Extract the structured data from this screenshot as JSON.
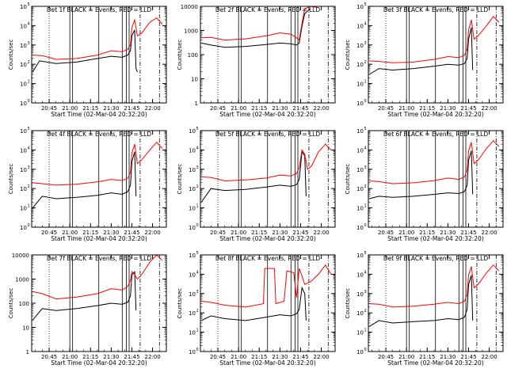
{
  "figure": {
    "start_time_label": "Start Time (02-Mar-04 20:32:20)",
    "ylabel": "Counts/sec",
    "x_ticks": [
      "20:45",
      "21:00",
      "21:15",
      "21:30",
      "21:45",
      "22:00"
    ],
    "colors": {
      "events": "#000000",
      "lld": "#ff0000"
    }
  },
  "chart_data": [
    {
      "type": "line",
      "title": "Det 1f BLACK = Events, RED = LLD",
      "ylabel": "Counts/sec",
      "xlabel": "Start Time (02-Mar-04 20:32:20)",
      "ylim": [
        1,
        100000
      ],
      "yscale": "log",
      "ytick_format": "exp",
      "xlim": [
        "20:32:20",
        "22:10:00"
      ],
      "x_ticks": [
        "20:45",
        "21:00",
        "21:15",
        "21:30",
        "21:45",
        "22:00"
      ],
      "series": [
        {
          "name": "BLACK = Events",
          "color": "#000000",
          "x": [
            "20:33",
            "20:38",
            "20:50",
            "21:05",
            "21:20",
            "21:30",
            "21:38",
            "21:42",
            "21:44",
            "21:45",
            "21:47",
            "21:48",
            "21:49"
          ],
          "values": [
            40,
            150,
            110,
            130,
            200,
            260,
            230,
            300,
            500,
            3000,
            6000,
            60,
            40
          ]
        },
        {
          "name": "RED = LLD",
          "color": "#ff0000",
          "x": [
            "20:33",
            "20:40",
            "20:50",
            "21:05",
            "21:20",
            "21:30",
            "21:38",
            "21:42",
            "21:44",
            "21:45",
            "21:47",
            "21:49",
            "21:52",
            "21:58",
            "22:03",
            "22:07"
          ],
          "values": [
            300,
            280,
            180,
            200,
            300,
            500,
            450,
            600,
            1000,
            8000,
            20000,
            3000,
            4000,
            15000,
            25000,
            12000
          ]
        }
      ]
    },
    {
      "type": "line",
      "title": "Det 2f BLACK = Events, RED = LLD",
      "ylabel": "Counts/sec",
      "xlabel": "Start Time (02-Mar-04 20:32:20)",
      "ylim": [
        1,
        10000
      ],
      "yscale": "log",
      "ytick_format": "plain",
      "xlim": [
        "20:32:20",
        "22:10:00"
      ],
      "x_ticks": [
        "20:45",
        "21:00",
        "21:15",
        "21:30",
        "21:45",
        "22:00"
      ],
      "series": [
        {
          "name": "BLACK = Events",
          "color": "#000000",
          "x": [
            "20:33",
            "20:40",
            "20:50",
            "21:05",
            "21:20",
            "21:30",
            "21:38",
            "21:42",
            "21:44",
            "21:46",
            "21:48",
            "21:52"
          ],
          "values": [
            300,
            250,
            200,
            220,
            260,
            300,
            280,
            250,
            300,
            1500,
            5000,
            8000
          ]
        },
        {
          "name": "RED = LLD",
          "color": "#ff0000",
          "x": [
            "20:33",
            "20:40",
            "20:50",
            "21:05",
            "21:20",
            "21:30",
            "21:38",
            "21:42",
            "21:44",
            "21:46",
            "21:48",
            "21:52",
            "21:57"
          ],
          "values": [
            500,
            520,
            400,
            450,
            600,
            800,
            700,
            500,
            400,
            2000,
            8000,
            10000,
            9000
          ]
        }
      ]
    },
    {
      "type": "line",
      "title": "Det 3f BLACK = Events, RED = LLD",
      "ylabel": "Counts/sec",
      "xlabel": "Start Time (02-Mar-04 20:32:20)",
      "ylim": [
        1,
        100000
      ],
      "yscale": "log",
      "ytick_format": "exp",
      "xlim": [
        "20:32:20",
        "22:10:00"
      ],
      "x_ticks": [
        "20:45",
        "21:00",
        "21:15",
        "21:30",
        "21:45",
        "22:00"
      ],
      "series": [
        {
          "name": "BLACK = Events",
          "color": "#000000",
          "x": [
            "20:33",
            "20:40",
            "20:50",
            "21:05",
            "21:20",
            "21:30",
            "21:38",
            "21:42",
            "21:44",
            "21:45",
            "21:47",
            "21:48"
          ],
          "values": [
            30,
            60,
            50,
            60,
            80,
            100,
            90,
            110,
            200,
            2000,
            8000,
            50
          ]
        },
        {
          "name": "RED = LLD",
          "color": "#ff0000",
          "x": [
            "20:33",
            "20:40",
            "20:50",
            "21:05",
            "21:20",
            "21:30",
            "21:38",
            "21:42",
            "21:44",
            "21:45",
            "21:47",
            "21:49",
            "21:52",
            "21:58",
            "22:03",
            "22:07"
          ],
          "values": [
            150,
            140,
            120,
            130,
            180,
            250,
            220,
            300,
            600,
            6000,
            20000,
            2000,
            3000,
            10000,
            30000,
            15000
          ]
        }
      ]
    },
    {
      "type": "line",
      "title": "Det 4f BLACK = Events, RED = LLD",
      "ylabel": "Counts/sec",
      "xlabel": "Start Time (02-Mar-04 20:32:20)",
      "ylim": [
        1,
        100000
      ],
      "yscale": "log",
      "ytick_format": "exp",
      "xlim": [
        "20:32:20",
        "22:10:00"
      ],
      "x_ticks": [
        "20:45",
        "21:00",
        "21:15",
        "21:30",
        "21:45",
        "22:00"
      ],
      "series": [
        {
          "name": "BLACK = Events",
          "color": "#000000",
          "x": [
            "20:33",
            "20:40",
            "20:50",
            "21:05",
            "21:20",
            "21:30",
            "21:38",
            "21:42",
            "21:44",
            "21:45",
            "21:47",
            "21:48"
          ],
          "values": [
            10,
            40,
            30,
            35,
            45,
            60,
            50,
            70,
            150,
            2500,
            8000,
            40
          ]
        },
        {
          "name": "RED = LLD",
          "color": "#ff0000",
          "x": [
            "20:33",
            "20:40",
            "20:50",
            "21:05",
            "21:20",
            "21:30",
            "21:38",
            "21:42",
            "21:44",
            "21:45",
            "21:47",
            "21:49",
            "21:52",
            "21:58",
            "22:03",
            "22:07"
          ],
          "values": [
            200,
            180,
            150,
            170,
            220,
            300,
            260,
            350,
            700,
            7000,
            20000,
            2000,
            3000,
            10000,
            25000,
            12000
          ]
        }
      ]
    },
    {
      "type": "line",
      "title": "Det 5f BLACK = Events, RED = LLD",
      "ylabel": "Counts/sec",
      "xlabel": "Start Time (02-Mar-04 20:32:20)",
      "ylim": [
        1,
        100000
      ],
      "yscale": "log",
      "ytick_format": "exp",
      "xlim": [
        "20:32:20",
        "22:10:00"
      ],
      "x_ticks": [
        "20:45",
        "21:00",
        "21:15",
        "21:30",
        "21:45",
        "22:00"
      ],
      "series": [
        {
          "name": "BLACK = Events",
          "color": "#000000",
          "x": [
            "20:33",
            "20:40",
            "20:50",
            "21:05",
            "21:20",
            "21:30",
            "21:38",
            "21:42",
            "21:44",
            "21:46",
            "21:48",
            "21:49"
          ],
          "values": [
            20,
            100,
            80,
            90,
            120,
            150,
            130,
            160,
            300,
            8000,
            5000,
            40
          ]
        },
        {
          "name": "RED = LLD",
          "color": "#ff0000",
          "x": [
            "20:33",
            "20:40",
            "20:50",
            "21:05",
            "21:20",
            "21:30",
            "21:38",
            "21:42",
            "21:44",
            "21:46",
            "21:48",
            "21:50",
            "21:53",
            "21:58",
            "22:03",
            "22:07"
          ],
          "values": [
            400,
            380,
            250,
            280,
            350,
            500,
            450,
            600,
            1200,
            10000,
            6000,
            1000,
            1500,
            8000,
            20000,
            10000
          ]
        }
      ]
    },
    {
      "type": "line",
      "title": "Det 6f BLACK = Events, RED = LLD",
      "ylabel": "Counts/sec",
      "xlabel": "Start Time (02-Mar-04 20:32:20)",
      "ylim": [
        1,
        100000
      ],
      "yscale": "log",
      "ytick_format": "exp",
      "xlim": [
        "20:32:20",
        "22:10:00"
      ],
      "x_ticks": [
        "20:45",
        "21:00",
        "21:15",
        "21:30",
        "21:45",
        "22:00"
      ],
      "series": [
        {
          "name": "BLACK = Events",
          "color": "#000000",
          "x": [
            "20:33",
            "20:40",
            "20:50",
            "21:05",
            "21:20",
            "21:30",
            "21:38",
            "21:42",
            "21:44",
            "21:45",
            "21:47",
            "21:48"
          ],
          "values": [
            30,
            40,
            35,
            40,
            50,
            60,
            55,
            70,
            150,
            3000,
            9000,
            50
          ]
        },
        {
          "name": "RED = LLD",
          "color": "#ff0000",
          "x": [
            "20:33",
            "20:40",
            "20:50",
            "21:05",
            "21:20",
            "21:30",
            "21:38",
            "21:42",
            "21:44",
            "21:45",
            "21:47",
            "21:49",
            "21:52",
            "21:58",
            "22:03",
            "22:07"
          ],
          "values": [
            250,
            230,
            180,
            200,
            260,
            350,
            300,
            400,
            900,
            9000,
            25000,
            2000,
            3000,
            12000,
            30000,
            15000
          ]
        }
      ]
    },
    {
      "type": "line",
      "title": "Det 7f BLACK = Events, RED = LLD",
      "ylabel": "Counts/sec",
      "xlabel": "Start Time (02-Mar-04 20:32:20)",
      "ylim": [
        1,
        10000
      ],
      "yscale": "log",
      "ytick_format": "plain",
      "xlim": [
        "20:32:20",
        "22:10:00"
      ],
      "x_ticks": [
        "20:45",
        "21:00",
        "21:15",
        "21:30",
        "21:45",
        "22:00"
      ],
      "series": [
        {
          "name": "BLACK = Events",
          "color": "#000000",
          "x": [
            "20:33",
            "20:40",
            "20:50",
            "21:05",
            "21:20",
            "21:30",
            "21:38",
            "21:42",
            "21:44",
            "21:45",
            "21:47",
            "21:48"
          ],
          "values": [
            20,
            60,
            50,
            60,
            80,
            100,
            90,
            110,
            200,
            1500,
            2000,
            50
          ]
        },
        {
          "name": "RED = LLD",
          "color": "#ff0000",
          "x": [
            "20:33",
            "20:40",
            "20:50",
            "21:05",
            "21:20",
            "21:30",
            "21:38",
            "21:42",
            "21:44",
            "21:45",
            "21:47",
            "21:49",
            "21:52",
            "21:58",
            "22:03",
            "22:07"
          ],
          "values": [
            300,
            250,
            150,
            180,
            250,
            400,
            350,
            500,
            900,
            2000,
            1500,
            1000,
            1500,
            5000,
            10000,
            6000
          ]
        }
      ]
    },
    {
      "type": "line",
      "title": "Det 8f BLACK = Events, RED = LLD",
      "ylabel": "Counts/sec",
      "xlabel": "Start Time (02-Mar-04 20:32:20)",
      "ylim": [
        1,
        100000
      ],
      "yscale": "log",
      "ytick_format": "exp",
      "xlim": [
        "20:32:20",
        "22:10:00"
      ],
      "x_ticks": [
        "20:45",
        "21:00",
        "21:15",
        "21:30",
        "21:45",
        "22:00"
      ],
      "series": [
        {
          "name": "BLACK = Events",
          "color": "#000000",
          "x": [
            "20:33",
            "20:40",
            "20:50",
            "21:05",
            "21:20",
            "21:30",
            "21:38",
            "21:42",
            "21:44",
            "21:46",
            "21:48",
            "21:49"
          ],
          "values": [
            40,
            70,
            50,
            40,
            60,
            80,
            70,
            90,
            150,
            2000,
            1000,
            40
          ]
        },
        {
          "name": "RED = LLD",
          "color": "#ff0000",
          "x": [
            "20:33",
            "20:40",
            "20:50",
            "21:05",
            "21:18",
            "21:19",
            "21:26",
            "21:27",
            "21:33",
            "21:35",
            "21:40",
            "21:42",
            "21:44",
            "21:46",
            "21:48",
            "21:52",
            "21:58",
            "22:03",
            "22:07"
          ],
          "values": [
            400,
            350,
            250,
            200,
            300,
            20000,
            20000,
            300,
            400,
            15000,
            12000,
            600,
            20000,
            8000,
            3000,
            4000,
            10000,
            30000,
            10000
          ]
        }
      ]
    },
    {
      "type": "line",
      "title": "Det 9f BLACK = Events, RED = LLD",
      "ylabel": "Counts/sec",
      "xlabel": "Start Time (02-Mar-04 20:32:20)",
      "ylim": [
        1,
        100000
      ],
      "yscale": "log",
      "ytick_format": "exp",
      "xlim": [
        "20:32:20",
        "22:10:00"
      ],
      "x_ticks": [
        "20:45",
        "21:00",
        "21:15",
        "21:30",
        "21:45",
        "22:00"
      ],
      "series": [
        {
          "name": "BLACK = Events",
          "color": "#000000",
          "x": [
            "20:33",
            "20:40",
            "20:50",
            "21:05",
            "21:20",
            "21:30",
            "21:38",
            "21:42",
            "21:44",
            "21:45",
            "21:47",
            "21:48"
          ],
          "values": [
            20,
            40,
            30,
            35,
            40,
            50,
            45,
            60,
            150,
            3000,
            9000,
            40
          ]
        },
        {
          "name": "RED = LLD",
          "color": "#ff0000",
          "x": [
            "20:33",
            "20:40",
            "20:50",
            "21:05",
            "21:20",
            "21:30",
            "21:38",
            "21:42",
            "21:44",
            "21:45",
            "21:47",
            "21:49",
            "21:52",
            "21:58",
            "22:03",
            "22:07"
          ],
          "values": [
            300,
            280,
            200,
            220,
            280,
            350,
            300,
            400,
            900,
            9000,
            25000,
            2000,
            3000,
            12000,
            30000,
            15000
          ]
        }
      ]
    }
  ]
}
